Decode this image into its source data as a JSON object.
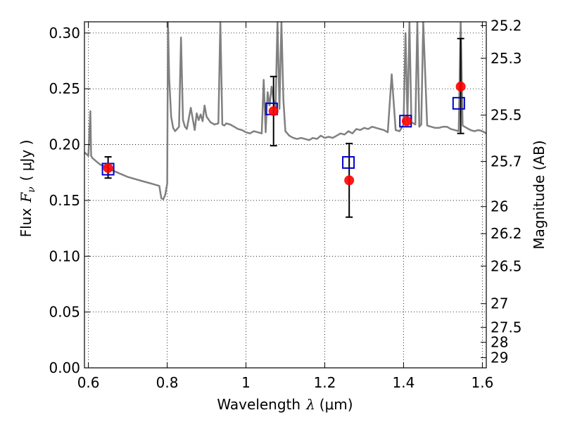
{
  "chart_data": {
    "type": "line",
    "title": "",
    "xlabel": "Wavelength",
    "xlabel_symbol": "λ",
    "xlabel_unit": "(μm)",
    "ylabel": "Flux",
    "ylabel_symbol": "F",
    "ylabel_subscript": "ν",
    "ylabel_unit": "( μJy )",
    "y2label": "Magnitude (AB)",
    "xlim": [
      0.59,
      1.61
    ],
    "ylim": [
      0.0,
      0.31
    ],
    "grid": true,
    "x_ticks": [
      {
        "value": 0.6,
        "label": "0.6"
      },
      {
        "value": 0.8,
        "label": "0.8"
      },
      {
        "value": 1.0,
        "label": "1"
      },
      {
        "value": 1.2,
        "label": "1.2"
      },
      {
        "value": 1.4,
        "label": "1.4"
      },
      {
        "value": 1.6,
        "label": "1.6"
      }
    ],
    "y_ticks": [
      {
        "value": 0.0,
        "label": "0.00"
      },
      {
        "value": 0.05,
        "label": "0.05"
      },
      {
        "value": 0.1,
        "label": "0.10"
      },
      {
        "value": 0.15,
        "label": "0.15"
      },
      {
        "value": 0.2,
        "label": "0.20"
      },
      {
        "value": 0.25,
        "label": "0.25"
      },
      {
        "value": 0.3,
        "label": "0.30"
      }
    ],
    "y2_ticks": [
      {
        "flux": 0.3066,
        "label": "25.2"
      },
      {
        "flux": 0.2773,
        "label": "25.3"
      },
      {
        "flux": 0.2264,
        "label": "25.5"
      },
      {
        "flux": 0.1849,
        "label": "25.7"
      },
      {
        "flux": 0.1445,
        "label": "26"
      },
      {
        "flux": 0.1202,
        "label": "26.2"
      },
      {
        "flux": 0.0912,
        "label": "26.5"
      },
      {
        "flux": 0.0575,
        "label": "27"
      },
      {
        "flux": 0.0363,
        "label": "27.5"
      },
      {
        "flux": 0.0229,
        "label": "28"
      },
      {
        "flux": 0.0091,
        "label": "29"
      }
    ],
    "series": [
      {
        "kind": "model_spectrum",
        "color": "#808080",
        "x": [
          0.59,
          0.6,
          0.605,
          0.607,
          0.61,
          0.62,
          0.63,
          0.645,
          0.66,
          0.68,
          0.7,
          0.72,
          0.74,
          0.76,
          0.77,
          0.78,
          0.785,
          0.79,
          0.795,
          0.8,
          0.802,
          0.805,
          0.81,
          0.815,
          0.82,
          0.825,
          0.83,
          0.835,
          0.84,
          0.845,
          0.85,
          0.86,
          0.87,
          0.875,
          0.88,
          0.885,
          0.89,
          0.895,
          0.9,
          0.91,
          0.92,
          0.93,
          0.935,
          0.94,
          0.945,
          0.95,
          0.96,
          0.97,
          0.98,
          0.99,
          1.0,
          1.01,
          1.02,
          1.03,
          1.04,
          1.045,
          1.05,
          1.055,
          1.06,
          1.065,
          1.07,
          1.075,
          1.08,
          1.085,
          1.09,
          1.095,
          1.1,
          1.11,
          1.12,
          1.13,
          1.14,
          1.15,
          1.16,
          1.17,
          1.18,
          1.19,
          1.2,
          1.21,
          1.22,
          1.23,
          1.24,
          1.25,
          1.26,
          1.27,
          1.28,
          1.29,
          1.3,
          1.31,
          1.32,
          1.33,
          1.34,
          1.35,
          1.36,
          1.37,
          1.38,
          1.39,
          1.4,
          1.405,
          1.41,
          1.415,
          1.42,
          1.43,
          1.435,
          1.44,
          1.445,
          1.45,
          1.46,
          1.47,
          1.48,
          1.49,
          1.5,
          1.51,
          1.52,
          1.53,
          1.54,
          1.545,
          1.55,
          1.56,
          1.57,
          1.58,
          1.59,
          1.6,
          1.61
        ],
        "y": [
          0.193,
          0.19,
          0.23,
          0.19,
          0.188,
          0.185,
          0.182,
          0.18,
          0.177,
          0.174,
          0.171,
          0.169,
          0.167,
          0.165,
          0.164,
          0.163,
          0.152,
          0.151,
          0.155,
          0.165,
          0.31,
          0.26,
          0.225,
          0.215,
          0.212,
          0.214,
          0.216,
          0.296,
          0.222,
          0.216,
          0.214,
          0.233,
          0.213,
          0.228,
          0.222,
          0.227,
          0.221,
          0.235,
          0.225,
          0.22,
          0.218,
          0.219,
          0.31,
          0.218,
          0.217,
          0.219,
          0.218,
          0.216,
          0.214,
          0.213,
          0.211,
          0.21,
          0.212,
          0.211,
          0.21,
          0.258,
          0.211,
          0.247,
          0.235,
          0.252,
          0.24,
          0.233,
          0.31,
          0.232,
          0.31,
          0.24,
          0.212,
          0.208,
          0.206,
          0.205,
          0.206,
          0.205,
          0.204,
          0.206,
          0.205,
          0.208,
          0.206,
          0.207,
          0.206,
          0.208,
          0.21,
          0.209,
          0.212,
          0.21,
          0.214,
          0.213,
          0.215,
          0.214,
          0.216,
          0.215,
          0.214,
          0.213,
          0.211,
          0.263,
          0.213,
          0.212,
          0.218,
          0.3,
          0.222,
          0.31,
          0.22,
          0.218,
          0.31,
          0.216,
          0.218,
          0.31,
          0.217,
          0.216,
          0.215,
          0.215,
          0.216,
          0.216,
          0.214,
          0.213,
          0.212,
          0.31,
          0.217,
          0.215,
          0.213,
          0.212,
          0.213,
          0.212,
          0.21
        ]
      },
      {
        "kind": "observed",
        "marker": "circle",
        "color": "#ff0000",
        "points": [
          {
            "x": 0.65,
            "y": 0.179,
            "yerr": [
              0.17,
              0.189
            ]
          },
          {
            "x": 1.07,
            "y": 0.23,
            "yerr": [
              0.199,
              0.261
            ]
          },
          {
            "x": 1.262,
            "y": 0.168,
            "yerr": [
              0.135,
              0.201
            ]
          },
          {
            "x": 1.408,
            "y": 0.221,
            "yerr": null
          },
          {
            "x": 1.545,
            "y": 0.252,
            "yerr": [
              0.21,
              0.295
            ]
          }
        ]
      },
      {
        "kind": "model_photometry",
        "marker": "square",
        "color": "#0000cc",
        "points": [
          {
            "x": 0.65,
            "y": 0.178
          },
          {
            "x": 1.065,
            "y": 0.232
          },
          {
            "x": 1.26,
            "y": 0.184
          },
          {
            "x": 1.405,
            "y": 0.221
          },
          {
            "x": 1.54,
            "y": 0.237
          }
        ]
      }
    ]
  }
}
